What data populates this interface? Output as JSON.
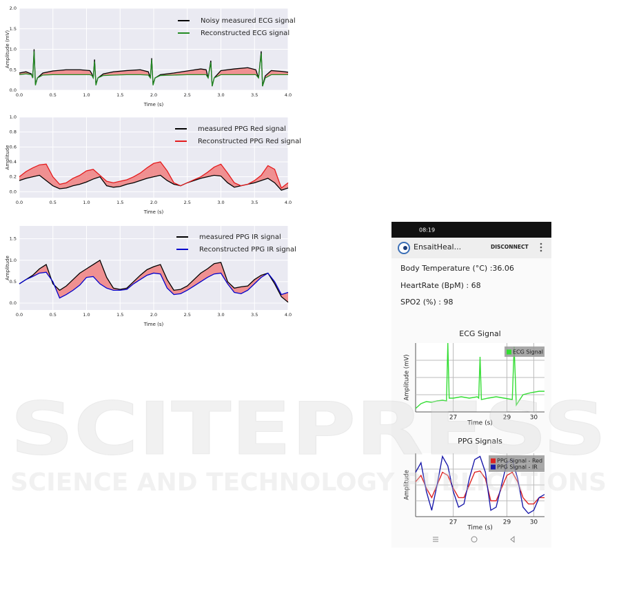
{
  "chart_data": [
    {
      "type": "line",
      "x_label": "Time (s)",
      "y_label": "Amplitude (mV)",
      "grid": true,
      "legend": "upper right",
      "fill_between": true,
      "fill_color": "#f08080",
      "xlim": [
        0,
        4
      ],
      "ylim": [
        0,
        2
      ],
      "xticks": [
        {
          "value": 0,
          "label": "0.0"
        },
        0.5,
        {
          "value": 1,
          "label": "1.0"
        },
        1.5,
        {
          "value": 2,
          "label": "2.0"
        },
        2.5,
        {
          "value": 3,
          "label": "3.0"
        },
        3.5,
        {
          "value": 4,
          "label": "4.0"
        }
      ],
      "yticks": [
        {
          "value": 0,
          "label": "0.0"
        },
        0.5,
        {
          "value": 1,
          "label": "1.0"
        },
        1.5,
        {
          "value": 2,
          "label": "2.0"
        }
      ],
      "x": [
        0,
        0.1,
        0.18,
        0.2,
        0.22,
        0.24,
        0.27,
        0.35,
        0.5,
        0.7,
        0.9,
        1.05,
        1.08,
        1.1,
        1.12,
        1.14,
        1.17,
        1.25,
        1.4,
        1.6,
        1.8,
        1.92,
        1.95,
        1.97,
        1.99,
        2.02,
        2.1,
        2.3,
        2.5,
        2.7,
        2.78,
        2.81,
        2.85,
        2.87,
        2.9,
        3.0,
        3.2,
        3.4,
        3.52,
        3.56,
        3.6,
        3.62,
        3.66,
        3.75,
        3.9,
        4.0
      ],
      "series": [
        {
          "name": "Noisy measured ECG signal",
          "color": "#000000",
          "values": [
            0.42,
            0.45,
            0.4,
            0.3,
            1.0,
            0.15,
            0.3,
            0.42,
            0.47,
            0.5,
            0.5,
            0.48,
            0.4,
            0.3,
            0.75,
            0.15,
            0.3,
            0.4,
            0.45,
            0.48,
            0.5,
            0.45,
            0.3,
            0.78,
            0.15,
            0.3,
            0.38,
            0.42,
            0.47,
            0.52,
            0.5,
            0.3,
            0.72,
            0.1,
            0.3,
            0.48,
            0.52,
            0.55,
            0.5,
            0.3,
            0.95,
            0.1,
            0.35,
            0.48,
            0.46,
            0.44
          ]
        },
        {
          "name": "Reconstructed ECG signal",
          "color": "#228b22",
          "values": [
            0.38,
            0.4,
            0.38,
            0.3,
            0.95,
            0.12,
            0.3,
            0.37,
            0.38,
            0.38,
            0.38,
            0.38,
            0.36,
            0.3,
            0.7,
            0.12,
            0.3,
            0.36,
            0.37,
            0.38,
            0.38,
            0.37,
            0.3,
            0.75,
            0.12,
            0.3,
            0.36,
            0.37,
            0.38,
            0.38,
            0.38,
            0.3,
            0.68,
            0.1,
            0.3,
            0.38,
            0.38,
            0.38,
            0.38,
            0.3,
            0.9,
            0.1,
            0.3,
            0.38,
            0.38,
            0.38
          ]
        }
      ]
    },
    {
      "type": "line",
      "x_label": "Time (s)",
      "y_label": "Amplitude",
      "grid": true,
      "legend": "upper right",
      "fill_between": true,
      "fill_color": "#f08080",
      "xlim": [
        0,
        4
      ],
      "ylim": [
        -0.08,
        1
      ],
      "xticks": [
        {
          "value": 0,
          "label": "0.0"
        },
        0.5,
        {
          "value": 1,
          "label": "1.0"
        },
        1.5,
        {
          "value": 2,
          "label": "2.0"
        },
        2.5,
        {
          "value": 3,
          "label": "3.0"
        },
        3.5,
        {
          "value": 4,
          "label": "4.0"
        }
      ],
      "yticks": [
        {
          "value": 0,
          "label": "0.0"
        },
        0.2,
        0.4,
        0.6,
        0.8,
        {
          "value": 1,
          "label": "1.0"
        }
      ],
      "x": [
        0,
        0.1,
        0.2,
        0.3,
        0.4,
        0.5,
        0.6,
        0.7,
        0.8,
        0.9,
        1.0,
        1.1,
        1.2,
        1.3,
        1.4,
        1.5,
        1.6,
        1.7,
        1.8,
        1.9,
        2.0,
        2.1,
        2.2,
        2.3,
        2.4,
        2.5,
        2.6,
        2.7,
        2.8,
        2.9,
        3.0,
        3.1,
        3.2,
        3.3,
        3.4,
        3.5,
        3.6,
        3.7,
        3.8,
        3.9,
        4.0
      ],
      "series": [
        {
          "name": "measured PPG Red signal",
          "color": "#000000",
          "values": [
            0.15,
            0.18,
            0.2,
            0.22,
            0.15,
            0.08,
            0.04,
            0.05,
            0.08,
            0.1,
            0.13,
            0.17,
            0.2,
            0.08,
            0.06,
            0.07,
            0.1,
            0.12,
            0.15,
            0.18,
            0.2,
            0.22,
            0.15,
            0.1,
            0.08,
            0.12,
            0.15,
            0.18,
            0.2,
            0.22,
            0.21,
            0.12,
            0.06,
            0.08,
            0.1,
            0.12,
            0.15,
            0.18,
            0.12,
            0.02,
            0.05
          ]
        },
        {
          "name": "Reconstructed PPG Red signal",
          "color": "#e41a1c",
          "values": [
            0.2,
            0.27,
            0.32,
            0.36,
            0.37,
            0.2,
            0.1,
            0.12,
            0.18,
            0.22,
            0.28,
            0.3,
            0.22,
            0.14,
            0.12,
            0.14,
            0.16,
            0.2,
            0.25,
            0.32,
            0.38,
            0.4,
            0.28,
            0.12,
            0.08,
            0.12,
            0.16,
            0.2,
            0.26,
            0.33,
            0.37,
            0.25,
            0.12,
            0.08,
            0.1,
            0.15,
            0.22,
            0.35,
            0.3,
            0.05,
            0.12
          ]
        }
      ]
    },
    {
      "type": "line",
      "x_label": "Time (s)",
      "y_label": "Amplitude",
      "grid": true,
      "legend": "upper right",
      "fill_between": true,
      "fill_color": "#f08080",
      "xlim": [
        0,
        4
      ],
      "ylim": [
        -0.16,
        1.8
      ],
      "xticks": [
        {
          "value": 0,
          "label": "0.0"
        },
        0.5,
        {
          "value": 1,
          "label": "1.0"
        },
        1.5,
        {
          "value": 2,
          "label": "2.0"
        },
        2.5,
        {
          "value": 3,
          "label": "3.0"
        },
        3.5,
        {
          "value": 4,
          "label": "4.0"
        }
      ],
      "yticks": [
        {
          "value": 0,
          "label": "0.0"
        },
        0.5,
        {
          "value": 1,
          "label": "1.0"
        },
        1.5
      ],
      "x": [
        0,
        0.1,
        0.2,
        0.3,
        0.4,
        0.5,
        0.6,
        0.7,
        0.8,
        0.9,
        1.0,
        1.1,
        1.2,
        1.3,
        1.4,
        1.5,
        1.6,
        1.7,
        1.8,
        1.9,
        2.0,
        2.1,
        2.2,
        2.3,
        2.4,
        2.5,
        2.6,
        2.7,
        2.8,
        2.9,
        3.0,
        3.1,
        3.2,
        3.3,
        3.4,
        3.5,
        3.6,
        3.7,
        3.8,
        3.9,
        4.0
      ],
      "series": [
        {
          "name": "measured PPG IR signal",
          "color": "#000000",
          "values": [
            0.45,
            0.55,
            0.65,
            0.8,
            0.9,
            0.45,
            0.3,
            0.4,
            0.55,
            0.7,
            0.8,
            0.9,
            1.0,
            0.6,
            0.35,
            0.32,
            0.35,
            0.5,
            0.65,
            0.78,
            0.85,
            0.9,
            0.55,
            0.3,
            0.32,
            0.4,
            0.55,
            0.7,
            0.8,
            0.92,
            0.95,
            0.5,
            0.35,
            0.38,
            0.4,
            0.55,
            0.65,
            0.7,
            0.45,
            0.15,
            0.02
          ]
        },
        {
          "name": "Reconstructed PPG IR signal",
          "color": "#0000cc",
          "values": [
            0.45,
            0.55,
            0.62,
            0.7,
            0.72,
            0.5,
            0.12,
            0.2,
            0.3,
            0.42,
            0.6,
            0.62,
            0.45,
            0.35,
            0.3,
            0.3,
            0.32,
            0.45,
            0.55,
            0.65,
            0.7,
            0.68,
            0.35,
            0.2,
            0.22,
            0.3,
            0.4,
            0.5,
            0.6,
            0.68,
            0.7,
            0.45,
            0.25,
            0.22,
            0.3,
            0.45,
            0.6,
            0.7,
            0.5,
            0.2,
            0.25
          ]
        }
      ]
    },
    {
      "type": "line",
      "title": "ECG Signal",
      "x_label": "Time (s)",
      "y_label": "Amplitude (mV)",
      "grid": true,
      "legend": "upper right",
      "xlim": [
        25.6,
        30.4
      ],
      "ylim": [
        0,
        1
      ],
      "xticks": [
        27,
        29,
        30
      ],
      "x": [
        25.6,
        25.8,
        26.0,
        26.2,
        26.4,
        26.6,
        26.75,
        26.8,
        26.85,
        27.0,
        27.3,
        27.6,
        27.9,
        27.95,
        28.0,
        28.05,
        28.3,
        28.6,
        28.9,
        29.2,
        29.27,
        29.35,
        29.6,
        29.9,
        30.2,
        30.4
      ],
      "series": [
        {
          "name": "ECG Signal",
          "color": "#33dd33",
          "values": [
            0.05,
            0.12,
            0.15,
            0.14,
            0.16,
            0.17,
            0.16,
            1.0,
            0.2,
            0.2,
            0.22,
            0.2,
            0.22,
            0.2,
            0.8,
            0.18,
            0.2,
            0.22,
            0.2,
            0.18,
            0.95,
            0.1,
            0.25,
            0.28,
            0.3,
            0.3
          ]
        }
      ]
    },
    {
      "type": "line",
      "title": "PPG Signals",
      "x_label": "Time (s)",
      "y_label": "Amplitude",
      "grid": true,
      "legend": "upper right",
      "xlim": [
        25.6,
        30.4
      ],
      "ylim": [
        0,
        1
      ],
      "xticks": [
        27,
        29,
        30
      ],
      "x": [
        25.6,
        25.8,
        26.0,
        26.2,
        26.4,
        26.6,
        26.8,
        27.0,
        27.2,
        27.4,
        27.6,
        27.8,
        28.0,
        28.2,
        28.4,
        28.6,
        28.8,
        29.0,
        29.2,
        29.4,
        29.6,
        29.8,
        30.0,
        30.2,
        30.4
      ],
      "series": [
        {
          "name": "PPG Signal - Red",
          "color": "#dd2222",
          "values": [
            0.55,
            0.65,
            0.45,
            0.3,
            0.5,
            0.7,
            0.65,
            0.45,
            0.3,
            0.3,
            0.5,
            0.7,
            0.72,
            0.6,
            0.25,
            0.25,
            0.45,
            0.65,
            0.7,
            0.55,
            0.3,
            0.2,
            0.2,
            0.3,
            0.3
          ]
        },
        {
          "name": "PPG Signal - IR",
          "color": "#1a1aaa",
          "values": [
            0.7,
            0.85,
            0.4,
            0.1,
            0.5,
            0.95,
            0.8,
            0.4,
            0.15,
            0.2,
            0.6,
            0.9,
            0.95,
            0.7,
            0.1,
            0.15,
            0.5,
            0.85,
            0.9,
            0.6,
            0.15,
            0.05,
            0.1,
            0.3,
            0.35
          ]
        }
      ]
    }
  ],
  "phone": {
    "status_time": "08:19",
    "app_name": "EnsaitHeal...",
    "button": "DISCONNECT",
    "readings": [
      "Body Temperature (°C) :36.06",
      "HeartRate (BpM) : 68",
      "SPO2 (%) : 98"
    ]
  },
  "watermark": {
    "line1": "SCITEPRESS",
    "line2": "SCIENCE AND TECHNOLOGY PUBLICATIONS"
  }
}
